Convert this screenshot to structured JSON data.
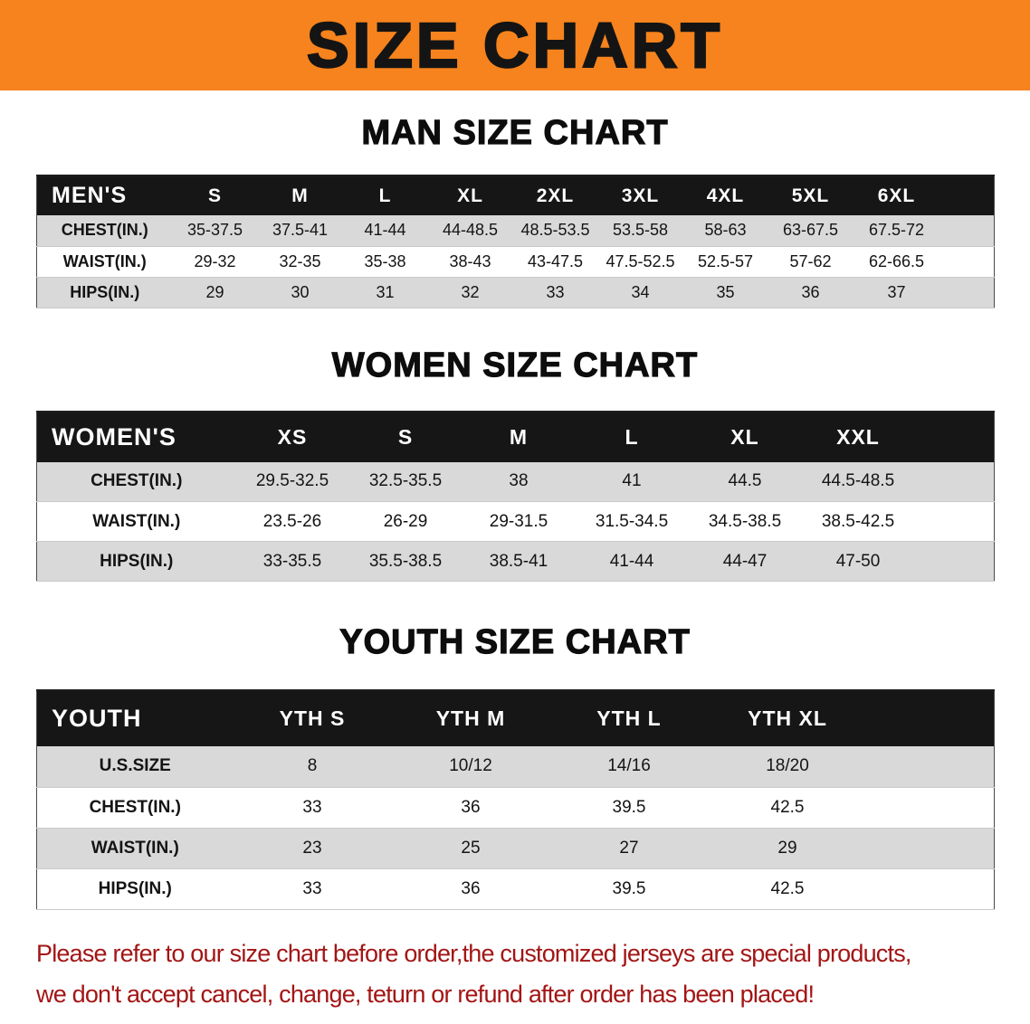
{
  "banner": {
    "title": "SIZE CHART"
  },
  "colors": {
    "banner_bg": "#F6831D",
    "header_bg": "#161616",
    "row_alt": "#D9D9D9",
    "footer_red": "#A31515"
  },
  "sections": [
    {
      "heading": "MAN SIZE CHART",
      "table": {
        "header": [
          "MEN'S",
          "S",
          "M",
          "L",
          "XL",
          "2XL",
          "3XL",
          "4XL",
          "5XL",
          "6XL"
        ],
        "rows": [
          [
            "CHEST(IN.)",
            "35-37.5",
            "37.5-41",
            "41-44",
            "44-48.5",
            "48.5-53.5",
            "53.5-58",
            "58-63",
            "63-67.5",
            "67.5-72"
          ],
          [
            "WAIST(IN.)",
            "29-32",
            "32-35",
            "35-38",
            "38-43",
            "43-47.5",
            "47.5-52.5",
            "52.5-57",
            "57-62",
            "62-66.5"
          ],
          [
            "HIPS(IN.)",
            "29",
            "30",
            "31",
            "32",
            "33",
            "34",
            "35",
            "36",
            "37"
          ]
        ]
      }
    },
    {
      "heading": "WOMEN SIZE CHART",
      "table": {
        "header": [
          "WOMEN'S",
          "XS",
          "S",
          "M",
          "L",
          "XL",
          "XXL"
        ],
        "rows": [
          [
            "CHEST(IN.)",
            "29.5-32.5",
            "32.5-35.5",
            "38",
            "41",
            "44.5",
            "44.5-48.5"
          ],
          [
            "WAIST(IN.)",
            "23.5-26",
            "26-29",
            "29-31.5",
            "31.5-34.5",
            "34.5-38.5",
            "38.5-42.5"
          ],
          [
            "HIPS(IN.)",
            "33-35.5",
            "35.5-38.5",
            "38.5-41",
            "41-44",
            "44-47",
            "47-50"
          ]
        ]
      }
    },
    {
      "heading": "YOUTH SIZE CHART",
      "table": {
        "header": [
          "YOUTH",
          "YTH S",
          "YTH M",
          "YTH L",
          "YTH XL"
        ],
        "rows": [
          [
            "U.S.SIZE",
            "8",
            "10/12",
            "14/16",
            "18/20"
          ],
          [
            "CHEST(IN.)",
            "33",
            "36",
            "39.5",
            "42.5"
          ],
          [
            "WAIST(IN.)",
            "23",
            "25",
            "27",
            "29"
          ],
          [
            "HIPS(IN.)",
            "33",
            "36",
            "39.5",
            "42.5"
          ]
        ]
      }
    }
  ],
  "footer": {
    "lines": [
      "Please refer to our size chart before order,the customized jerseys are special products,",
      "we don't accept cancel, change, teturn or refund after order has been placed!"
    ]
  }
}
